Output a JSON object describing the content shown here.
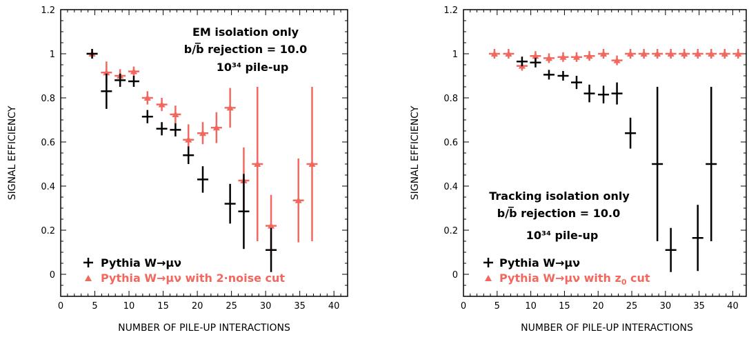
{
  "chart_data": [
    {
      "type": "scatter",
      "panel": "left",
      "xlabel": "NUMBER OF PILE-UP INTERACTIONS",
      "ylabel": "SIGNAL EFFICIENCY",
      "xlim": [
        0,
        42
      ],
      "ylim": [
        -0.1,
        1.2
      ],
      "xticks": [
        0,
        5,
        10,
        15,
        20,
        25,
        30,
        35,
        40
      ],
      "yticks": [
        0,
        0.2,
        0.4,
        0.6,
        0.8,
        1,
        1.2
      ],
      "ytick_labels": [
        "0",
        "0.2",
        "0.4",
        "0.6",
        "0.8",
        "1",
        "1.2"
      ],
      "annotations": [
        "EM isolation only",
        "b/b̅ rejection = 10.0",
        "10³⁴ pile-up"
      ],
      "series": [
        {
          "name": "Pythia W→μν",
          "color": "#000000",
          "marker": "cross",
          "x": [
            4.6,
            6.7,
            8.7,
            10.7,
            12.7,
            14.8,
            16.8,
            18.7,
            20.8,
            24.8,
            26.8,
            30.8
          ],
          "y": [
            1.0,
            0.83,
            0.88,
            0.875,
            0.715,
            0.66,
            0.655,
            0.54,
            0.43,
            0.32,
            0.285,
            0.11
          ],
          "yerr": [
            0.01,
            0.08,
            0.03,
            0.025,
            0.03,
            0.03,
            0.03,
            0.04,
            0.06,
            0.09,
            0.17,
            0.1
          ]
        },
        {
          "name": "Pythia W→μν with 2·noise cut",
          "color": "#f2685f",
          "marker": "triangle",
          "x": [
            4.6,
            6.7,
            8.7,
            10.7,
            12.7,
            14.8,
            16.8,
            18.7,
            20.8,
            22.8,
            24.8,
            26.8,
            28.8,
            30.8,
            34.8,
            36.8
          ],
          "y": [
            1.0,
            0.915,
            0.9,
            0.92,
            0.8,
            0.77,
            0.725,
            0.61,
            0.64,
            0.665,
            0.755,
            0.425,
            0.5,
            0.22,
            0.335,
            0.5
          ],
          "yerr": [
            0.01,
            0.05,
            0.03,
            0.02,
            0.03,
            0.03,
            0.04,
            0.07,
            0.05,
            0.07,
            0.09,
            0.15,
            0.35,
            0.14,
            0.19,
            0.35
          ]
        }
      ]
    },
    {
      "type": "scatter",
      "panel": "right",
      "xlabel": "NUMBER OF PILE-UP INTERACTIONS",
      "ylabel": "SIGNAL EFFICIENCY",
      "xlim": [
        0,
        42
      ],
      "ylim": [
        -0.1,
        1.2
      ],
      "xticks": [
        0,
        5,
        10,
        15,
        20,
        25,
        30,
        35,
        40
      ],
      "yticks": [
        0,
        0.2,
        0.4,
        0.6,
        0.8,
        1,
        1.2
      ],
      "ytick_labels": [
        "0",
        "0.2",
        "0.4",
        "0.6",
        "0.8",
        "1",
        "1.2"
      ],
      "annotations": [
        "Tracking isolation only",
        "b/b̅ rejection = 10.0",
        "10³⁴ pile-up"
      ],
      "series": [
        {
          "name": "Pythia W→μν",
          "color": "#000000",
          "marker": "cross",
          "x": [
            8.7,
            10.7,
            12.7,
            14.8,
            16.8,
            18.7,
            20.8,
            22.8,
            24.8,
            28.8,
            30.8,
            34.8,
            36.8
          ],
          "y": [
            0.965,
            0.96,
            0.905,
            0.9,
            0.87,
            0.82,
            0.815,
            0.82,
            0.64,
            0.5,
            0.11,
            0.165,
            0.5
          ],
          "yerr": [
            0.02,
            0.02,
            0.01,
            0.01,
            0.03,
            0.04,
            0.04,
            0.05,
            0.07,
            0.35,
            0.1,
            0.15,
            0.35
          ]
        },
        {
          "name": "Pythia W→μν with z0 cut",
          "color": "#f2685f",
          "marker": "triangle",
          "x": [
            4.6,
            6.7,
            8.7,
            10.7,
            12.7,
            14.8,
            16.8,
            18.7,
            20.8,
            22.8,
            24.8,
            26.8,
            28.8,
            30.8,
            32.8,
            34.8,
            36.8,
            38.8,
            40.8
          ],
          "y": [
            1.0,
            1.0,
            0.945,
            0.99,
            0.98,
            0.985,
            0.985,
            0.99,
            1.0,
            0.97,
            1.0,
            1.0,
            1.0,
            1.0,
            1.0,
            1.0,
            1.0,
            1.0,
            1.0
          ],
          "yerr": [
            0.005,
            0.005,
            0.02,
            0.01,
            0.01,
            0.01,
            0.01,
            0.01,
            0.01,
            0.02,
            0.005,
            0.005,
            0.005,
            0.005,
            0.005,
            0.005,
            0.005,
            0.005,
            0.005
          ]
        }
      ]
    }
  ],
  "legend": {
    "left": {
      "entry1_name": "Pythia W→μν",
      "entry2_name": "Pythia W→μν with 2·noise cut"
    },
    "right": {
      "entry1_name": "Pythia W→μν",
      "entry2_prefix": "Pythia W→μν with z",
      "entry2_sub": "0",
      "entry2_suffix": " cut"
    }
  }
}
